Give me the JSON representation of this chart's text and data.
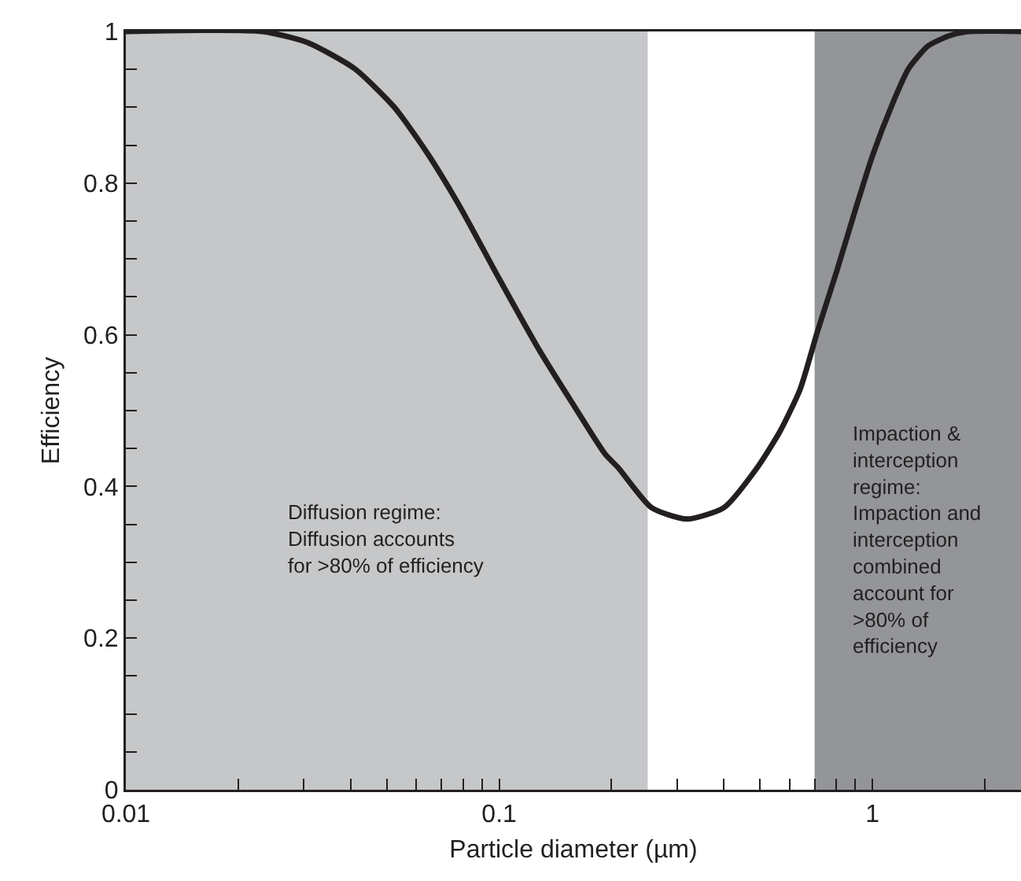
{
  "chart_data": {
    "type": "line",
    "xlabel": "Particle diameter (µm)",
    "ylabel": "Efficiency",
    "log": "x",
    "x": [
      0.01,
      0.0232,
      0.0308,
      0.041,
      0.0524,
      0.0641,
      0.0787,
      0.1,
      0.128,
      0.157,
      0.192,
      0.209,
      0.256,
      0.318,
      0.4,
      0.49,
      0.566,
      0.64,
      0.713,
      0.8,
      0.904,
      1.0,
      1.13,
      1.25,
      1.41,
      1.6,
      1.8,
      2.5
    ],
    "series": [
      {
        "color": "#231f20",
        "values": [
          1.0,
          1.0,
          0.985,
          0.951,
          0.9,
          0.84,
          0.768,
          0.674,
          0.58,
          0.51,
          0.443,
          0.424,
          0.372,
          0.357,
          0.372,
          0.424,
          0.473,
          0.528,
          0.605,
          0.682,
          0.768,
          0.836,
          0.904,
          0.951,
          0.981,
          0.994,
          1.0,
          1.0
        ]
      }
    ],
    "xlim": [
      0.01,
      2.5
    ],
    "ylim": [
      0,
      1
    ],
    "xticks": [
      0.01,
      {
        "value": 0.02,
        "label": null
      },
      {
        "value": 0.03,
        "label": null
      },
      {
        "value": 0.04,
        "label": null
      },
      {
        "value": 0.05,
        "label": null
      },
      {
        "value": 0.06,
        "label": null
      },
      {
        "value": 0.07,
        "label": null
      },
      {
        "value": 0.08,
        "label": null
      },
      {
        "value": 0.09,
        "label": null
      },
      0.1,
      {
        "value": 0.2,
        "label": null
      },
      {
        "value": 0.3,
        "label": null
      },
      {
        "value": 0.4,
        "label": null
      },
      {
        "value": 0.5,
        "label": null
      },
      {
        "value": 0.6,
        "label": null
      },
      {
        "value": 0.7,
        "label": null
      },
      {
        "value": 0.8,
        "label": null
      },
      {
        "value": 0.9,
        "label": null
      },
      1,
      {
        "value": 2,
        "label": null
      }
    ],
    "yticks": [
      0,
      {
        "value": 0.05,
        "label": null
      },
      {
        "value": 0.1,
        "label": null
      },
      {
        "value": 0.15,
        "label": null
      },
      0.2,
      {
        "value": 0.25,
        "label": null
      },
      {
        "value": 0.3,
        "label": null
      },
      {
        "value": 0.35,
        "label": null
      },
      0.4,
      {
        "value": 0.45,
        "label": null
      },
      {
        "value": 0.5,
        "label": null
      },
      {
        "value": 0.55,
        "label": null
      },
      0.6,
      {
        "value": 0.65,
        "label": null
      },
      {
        "value": 0.7,
        "label": null
      },
      {
        "value": 0.75,
        "label": null
      },
      0.8,
      {
        "value": 0.85,
        "label": null
      },
      {
        "value": 0.9,
        "label": null
      },
      {
        "value": 0.95,
        "label": null
      },
      1
    ],
    "bands": [
      {
        "axis": "x",
        "from": 0.01,
        "to": 0.25,
        "color": "#c6c7c9",
        "label": "Diffusion regime:\nDiffusion accounts\nfor >80% of efficiency"
      },
      {
        "axis": "x",
        "from": 0.7,
        "to": 2.5,
        "color": "#939598",
        "label": "Impaction &\ninterception\nregime:\nImpaction and\ninterception\ncombined\naccount for\n>80% of\nefficiency"
      }
    ],
    "grid": false,
    "marker": "none",
    "line_style": "solid"
  }
}
